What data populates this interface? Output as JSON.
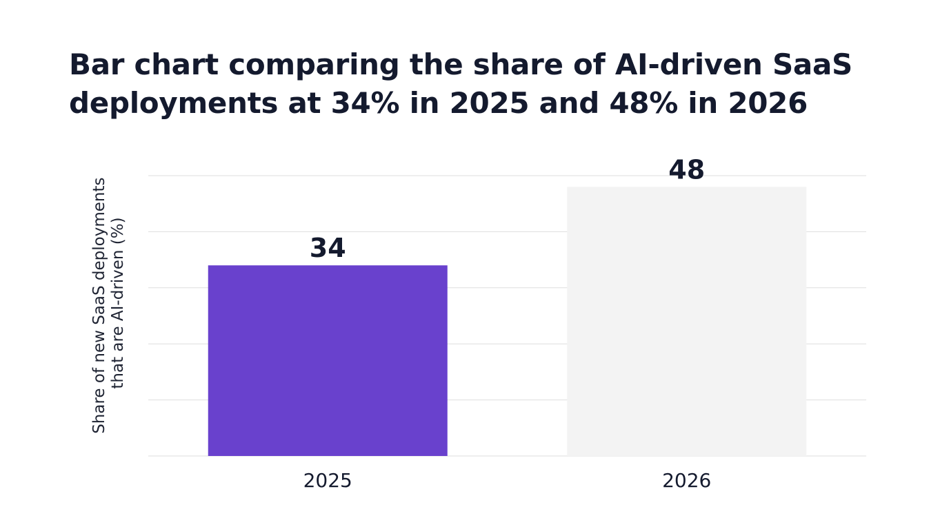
{
  "colors": {
    "background": "#ffffff",
    "text": "#141a2e",
    "grid": "#dedede",
    "bar_2025": "#6941cd",
    "bar_2026": "#f3f3f3"
  },
  "chart_data": {
    "type": "bar",
    "title": "Bar chart comparing the share of AI-driven SaaS deployments at 34% in 2025 and 48% in 2026",
    "xlabel": "",
    "ylabel_lines": [
      "Share of new SaaS deployments",
      "that are AI-driven (%)"
    ],
    "categories": [
      "2025",
      "2026"
    ],
    "values": [
      34,
      48
    ],
    "value_labels": [
      "34",
      "48"
    ],
    "ylim": [
      0,
      50
    ],
    "grid": true,
    "legend": "none"
  }
}
